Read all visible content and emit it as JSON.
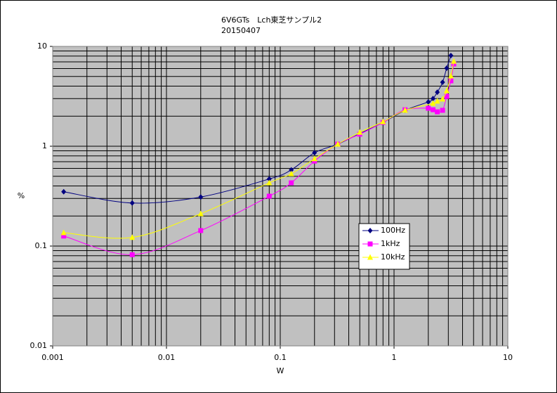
{
  "chart_data": {
    "type": "line",
    "title": "6V6GTs　Lch東芝サンプル2",
    "subtitle": "20150407",
    "x_label": "W",
    "y_label": "%",
    "log_x": true,
    "log_y": true,
    "grid": true,
    "minor_grid": true,
    "legend_position": "center-right",
    "xlim": [
      0.001,
      10
    ],
    "xticks": [
      0.001,
      0.01,
      0.1,
      1,
      10
    ],
    "ylim": [
      0.01,
      10
    ],
    "yticks": [
      0.01,
      0.1,
      1,
      10
    ],
    "series": [
      {
        "name": "100Hz",
        "color": "#000080",
        "marker": "diamond",
        "x": [
          0.00125,
          0.005,
          0.02,
          0.08,
          0.125,
          0.2,
          0.32,
          0.5,
          0.8,
          1.25,
          2.0,
          2.2,
          2.4,
          2.67,
          2.9,
          3.16
        ],
        "values": [
          0.35,
          0.27,
          0.31,
          0.47,
          0.58,
          0.86,
          1.05,
          1.34,
          1.73,
          2.29,
          2.78,
          3.0,
          3.48,
          4.37,
          6.05,
          8.1
        ]
      },
      {
        "name": "1kHz",
        "color": "#ff00ff",
        "marker": "square",
        "x": [
          0.00125,
          0.005,
          0.02,
          0.08,
          0.125,
          0.2,
          0.32,
          0.5,
          0.8,
          1.25,
          2.0,
          2.2,
          2.4,
          2.67,
          2.9,
          3.16,
          3.35
        ],
        "values": [
          0.126,
          0.082,
          0.143,
          0.316,
          0.43,
          0.71,
          1.05,
          1.32,
          1.73,
          2.32,
          2.4,
          2.32,
          2.21,
          2.29,
          3.16,
          4.52,
          6.67
        ]
      },
      {
        "name": "10kHz",
        "color": "#ffff00",
        "marker": "triangle",
        "x": [
          0.00125,
          0.005,
          0.02,
          0.08,
          0.125,
          0.2,
          0.32,
          0.5,
          0.8,
          1.25,
          2.2,
          2.4,
          2.67,
          2.9,
          3.16,
          3.35
        ],
        "values": [
          0.136,
          0.122,
          0.211,
          0.43,
          0.53,
          0.75,
          1.05,
          1.38,
          1.76,
          2.29,
          2.69,
          2.83,
          2.97,
          3.6,
          5.06,
          7.1
        ]
      }
    ]
  }
}
